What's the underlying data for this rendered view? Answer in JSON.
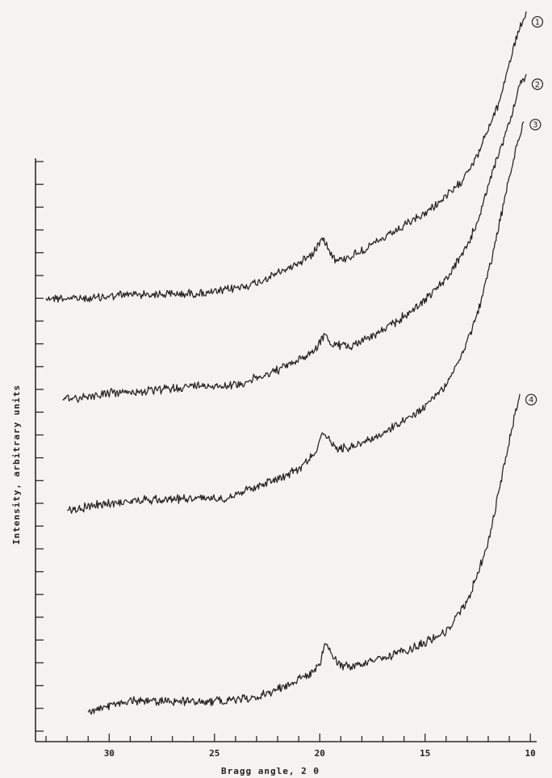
{
  "chart_data": {
    "type": "line",
    "title": "",
    "xlabel": "Bragg angle, 2 θ",
    "ylabel": "Intensity, arbitrary units",
    "xlim": [
      33.5,
      9.7
    ],
    "x_reversed": true,
    "x_ticks": [
      30,
      25,
      20,
      15,
      10
    ],
    "x_minor_step": 1,
    "y_minor_tick_count": 26,
    "ylim": [
      0,
      100
    ],
    "grid": false,
    "legend": "none",
    "series": [
      {
        "marker": "1",
        "x": [
          33,
          31,
          29,
          27,
          25,
          23,
          21.5,
          20.3,
          19.9,
          19.5,
          19.2,
          18.5,
          17,
          15,
          13.5,
          12.5,
          11.5,
          11,
          10.5,
          10.2
        ],
        "y": [
          60.5,
          60.4,
          61.0,
          61.0,
          61.2,
          62.5,
          64.5,
          66.5,
          69.0,
          66.8,
          65.5,
          66.2,
          68.5,
          72.0,
          75.5,
          80.0,
          87.0,
          92.5,
          97.5,
          99.0
        ]
      },
      {
        "marker": "2",
        "x": [
          32.2,
          30,
          28,
          26,
          24,
          22.5,
          21,
          20.2,
          19.8,
          19.4,
          18.5,
          17,
          15.5,
          14,
          13,
          12.5,
          11.8,
          11,
          10.5,
          10.2
        ],
        "y": [
          46.6,
          47.5,
          47.8,
          48.5,
          48.6,
          50.0,
          52.0,
          53.5,
          55.5,
          54.0,
          54.0,
          56.0,
          59.0,
          63.0,
          67.5,
          71.0,
          77.5,
          84.5,
          89.5,
          90.5
        ]
      },
      {
        "marker": "3",
        "x": [
          32,
          30,
          28,
          26,
          24.5,
          23,
          21.5,
          21,
          20.2,
          19.9,
          19.6,
          19.2,
          18.5,
          17,
          15.5,
          14,
          13,
          12.5,
          11.8,
          11,
          10.3
        ],
        "y": [
          31.5,
          32.5,
          33.0,
          33.2,
          33.2,
          34.8,
          36.5,
          37.2,
          39.5,
          42.0,
          41.2,
          40.0,
          40.2,
          42.0,
          44.5,
          48.5,
          54.5,
          58.5,
          66.0,
          77.0,
          85.0
        ]
      },
      {
        "marker": "4",
        "x": [
          31,
          29,
          27,
          25,
          23,
          21.5,
          20.5,
          20,
          19.7,
          19.4,
          19,
          18.5,
          17,
          15.5,
          14,
          13,
          12.5,
          12,
          11.5,
          11,
          10.5
        ],
        "y": [
          4.0,
          5.6,
          5.5,
          5.5,
          6.0,
          7.8,
          9.2,
          10.5,
          13.5,
          11.5,
          10.5,
          10.2,
          11.3,
          12.8,
          15.0,
          19.0,
          23.0,
          27.0,
          34.0,
          41.0,
          47.5
        ]
      }
    ]
  }
}
